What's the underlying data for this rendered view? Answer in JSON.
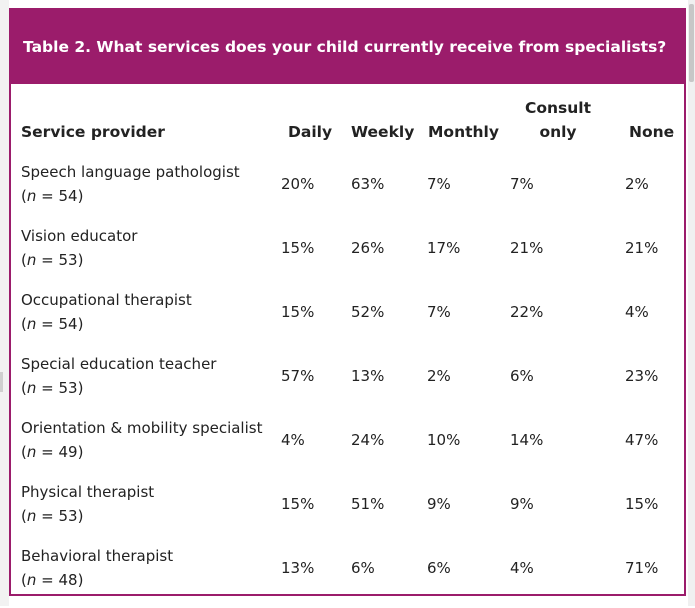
{
  "table": {
    "caption": "Table 2. What services does your child currently receive from specialists?",
    "headers": {
      "provider": "Service provider",
      "daily": "Daily",
      "weekly": "Weekly",
      "monthly": "Monthly",
      "consult_line1": "Consult",
      "consult_line2": "only",
      "none": "None"
    },
    "rows": [
      {
        "name": "Speech language pathologist",
        "n_label": "n",
        "n_rest": " = 54)",
        "daily": "20%",
        "weekly": "63%",
        "monthly": "7%",
        "consult": "7%",
        "none": "2%"
      },
      {
        "name": "Vision educator",
        "n_label": "n",
        "n_rest": " = 53)",
        "daily": "15%",
        "weekly": "26%",
        "monthly": "17%",
        "consult": "21%",
        "none": "21%"
      },
      {
        "name": "Occupational therapist",
        "n_label": "n",
        "n_rest": " = 54)",
        "daily": "15%",
        "weekly": "52%",
        "monthly": "7%",
        "consult": "22%",
        "none": "4%"
      },
      {
        "name": "Special education teacher",
        "n_label": "n",
        "n_rest": " = 53)",
        "daily": "57%",
        "weekly": "13%",
        "monthly": "2%",
        "consult": "6%",
        "none": "23%"
      },
      {
        "name": "Orientation & mobility specialist",
        "n_label": "n",
        "n_rest": " = 49)",
        "daily": "4%",
        "weekly": "24%",
        "monthly": "10%",
        "consult": "14%",
        "none": "47%"
      },
      {
        "name": "Physical therapist",
        "n_label": "n",
        "n_rest": " = 53)",
        "daily": "15%",
        "weekly": "51%",
        "monthly": "9%",
        "consult": "9%",
        "none": "15%"
      },
      {
        "name": "Behavioral therapist",
        "n_label": "n",
        "n_rest": " = 48)",
        "daily": "13%",
        "weekly": "6%",
        "monthly": "6%",
        "consult": "4%",
        "none": "71%"
      }
    ]
  },
  "colors": {
    "accent": "#9b1c6b",
    "text": "#222222"
  }
}
